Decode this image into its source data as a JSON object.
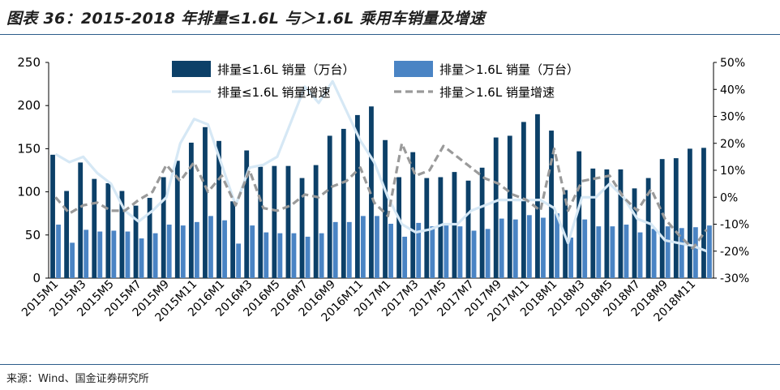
{
  "title": "图表 36：2015-2018 年排量≤1.6L 与＞1.6L 乘用车销量及增速",
  "source": "来源：Wind、国金证券研究所",
  "colors": {
    "small_bar": "#0c4068",
    "large_bar": "#4a84c4",
    "small_line": "#d6e8f5",
    "large_line": "#9a9a9a",
    "rule": "#2c5d8a"
  },
  "chart_data": {
    "type": "bar",
    "categories": [
      "2015M1",
      "2015M2",
      "2015M3",
      "2015M4",
      "2015M5",
      "2015M6",
      "2015M7",
      "2015M8",
      "2015M9",
      "2015M10",
      "2015M11",
      "2015M12",
      "2016M1",
      "2016M2",
      "2016M3",
      "2016M4",
      "2016M5",
      "2016M6",
      "2016M7",
      "2016M8",
      "2016M9",
      "2016M10",
      "2016M11",
      "2016M12",
      "2017M1",
      "2017M2",
      "2017M3",
      "2017M4",
      "2017M5",
      "2017M6",
      "2017M7",
      "2017M8",
      "2017M9",
      "2017M10",
      "2017M11",
      "2017M12",
      "2018M1",
      "2018M2",
      "2018M3",
      "2018M4",
      "2018M5",
      "2018M6",
      "2018M7",
      "2018M8",
      "2018M9",
      "2018M10",
      "2018M11",
      "2018M12"
    ],
    "x_tick_labels": [
      "2015M1",
      "2015M3",
      "2015M5",
      "2015M7",
      "2015M9",
      "2015M11",
      "2016M1",
      "2016M3",
      "2016M5",
      "2016M7",
      "2016M9",
      "2016M11",
      "2017M1",
      "2017M3",
      "2017M5",
      "2017M7",
      "2017M9",
      "2017M11",
      "2018M1",
      "2018M3",
      "2018M5",
      "2018M7",
      "2018M9",
      "2018M11"
    ],
    "series": [
      {
        "name": "排量≤1.6L 销量（万台）",
        "kind": "bar",
        "axis": "left",
        "values": [
          143,
          101,
          134,
          115,
          110,
          101,
          84,
          93,
          117,
          136,
          157,
          175,
          159,
          89,
          148,
          129,
          130,
          130,
          116,
          131,
          165,
          173,
          189,
          199,
          160,
          117,
          146,
          116,
          117,
          123,
          113,
          128,
          163,
          165,
          181,
          190,
          171,
          102,
          147,
          127,
          126,
          126,
          104,
          116,
          138,
          139,
          150,
          151
        ]
      },
      {
        "name": "排量＞1.6L 销量（万台）",
        "kind": "bar",
        "axis": "left",
        "values": [
          62,
          41,
          56,
          54,
          55,
          54,
          46,
          52,
          62,
          61,
          65,
          72,
          67,
          40,
          61,
          53,
          52,
          52,
          48,
          52,
          65,
          65,
          72,
          72,
          63,
          48,
          64,
          60,
          61,
          60,
          55,
          57,
          69,
          68,
          73,
          70,
          75,
          47,
          68,
          60,
          60,
          62,
          53,
          57,
          60,
          58,
          59,
          61
        ]
      },
      {
        "name": "排量≤1.6L 销量增速",
        "kind": "line",
        "axis": "right",
        "values": [
          16,
          13,
          15,
          9,
          5,
          -5,
          -9,
          -5,
          0,
          20,
          29,
          27,
          12,
          -3,
          11,
          12,
          15,
          28,
          41,
          35,
          43,
          32,
          21,
          13,
          0,
          -10,
          -13,
          -12,
          -10,
          -10,
          -5,
          -3,
          -1,
          -1,
          -1,
          -1,
          -4,
          -17,
          0,
          0,
          5,
          0,
          -8,
          -10,
          -16,
          -17,
          -18,
          -20
        ]
      },
      {
        "name": "排量＞1.6L 销量增速",
        "kind": "line",
        "axis": "right",
        "values": [
          0,
          -6,
          -3,
          -2,
          -5,
          -5,
          -1,
          2,
          12,
          6,
          13,
          2,
          8,
          -3,
          10,
          -4,
          -5,
          -3,
          1,
          0,
          4,
          6,
          11,
          -2,
          -7,
          20,
          8,
          10,
          19,
          15,
          11,
          7,
          5,
          1,
          -1,
          -5,
          18,
          -5,
          6,
          7,
          8,
          0,
          -5,
          3,
          -8,
          -14,
          -19,
          -12
        ]
      }
    ],
    "left_axis": {
      "ylim": [
        0,
        250
      ],
      "ticks": [
        "0",
        "50",
        "100",
        "150",
        "200",
        "250"
      ]
    },
    "right_axis": {
      "ylim": [
        -30,
        50
      ],
      "ticks": [
        "-30%",
        "-20%",
        "-10%",
        "0%",
        "10%",
        "20%",
        "30%",
        "40%",
        "50%"
      ]
    },
    "legend_position": "top-center",
    "grid": false
  }
}
